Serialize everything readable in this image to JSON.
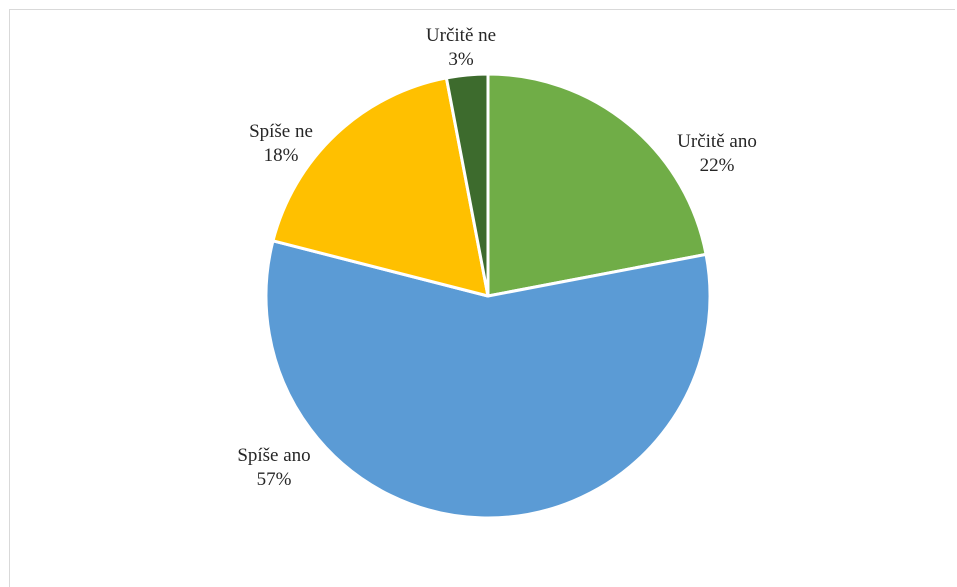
{
  "chart_data": {
    "type": "pie",
    "categories": [
      "Určitě ano",
      "Spíše ano",
      "Spíše ne",
      "Určitě ne"
    ],
    "values": [
      22,
      57,
      18,
      3
    ],
    "value_labels": [
      "22%",
      "57%",
      "18%",
      "3%"
    ],
    "colors": [
      "#70ad47",
      "#5b9bd5",
      "#ffc000",
      "#3d6b2d"
    ],
    "start_angle_deg": 0,
    "direction": "clockwise",
    "legend": "none",
    "title": ""
  }
}
